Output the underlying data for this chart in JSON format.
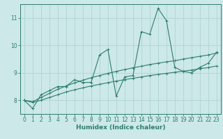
{
  "xlabel": "Humidex (Indice chaleur)",
  "bg_color": "#cce8e8",
  "line_color": "#2e7d6e",
  "grid_color": "#b0d4d4",
  "x_data": [
    0,
    1,
    2,
    3,
    4,
    5,
    6,
    7,
    8,
    9,
    10,
    11,
    12,
    13,
    14,
    15,
    16,
    17,
    18,
    19,
    20,
    21,
    22,
    23
  ],
  "y_jagged": [
    8.0,
    7.7,
    8.2,
    8.35,
    8.5,
    8.5,
    8.75,
    8.65,
    8.65,
    9.65,
    9.85,
    8.15,
    8.85,
    8.9,
    10.5,
    10.4,
    11.35,
    10.9,
    9.2,
    9.05,
    9.0,
    9.2,
    9.35,
    9.75
  ],
  "y_upper": [
    8.0,
    7.95,
    8.1,
    8.25,
    8.4,
    8.52,
    8.63,
    8.73,
    8.82,
    8.9,
    8.98,
    9.05,
    9.12,
    9.18,
    9.24,
    9.3,
    9.35,
    9.4,
    9.44,
    9.5,
    9.55,
    9.6,
    9.65,
    9.72
  ],
  "y_lower": [
    8.0,
    7.92,
    8.0,
    8.1,
    8.2,
    8.3,
    8.38,
    8.45,
    8.52,
    8.58,
    8.64,
    8.7,
    8.75,
    8.8,
    8.85,
    8.9,
    8.94,
    8.98,
    9.02,
    9.06,
    9.1,
    9.15,
    9.19,
    9.25
  ],
  "ylim": [
    7.5,
    11.5
  ],
  "xlim": [
    -0.5,
    23.5
  ],
  "yticks": [
    8,
    9,
    10,
    11
  ],
  "xticks": [
    0,
    1,
    2,
    3,
    4,
    5,
    6,
    7,
    8,
    9,
    10,
    11,
    12,
    13,
    14,
    15,
    16,
    17,
    18,
    19,
    20,
    21,
    22,
    23
  ],
  "tick_fontsize": 5.5,
  "label_fontsize": 6.5
}
